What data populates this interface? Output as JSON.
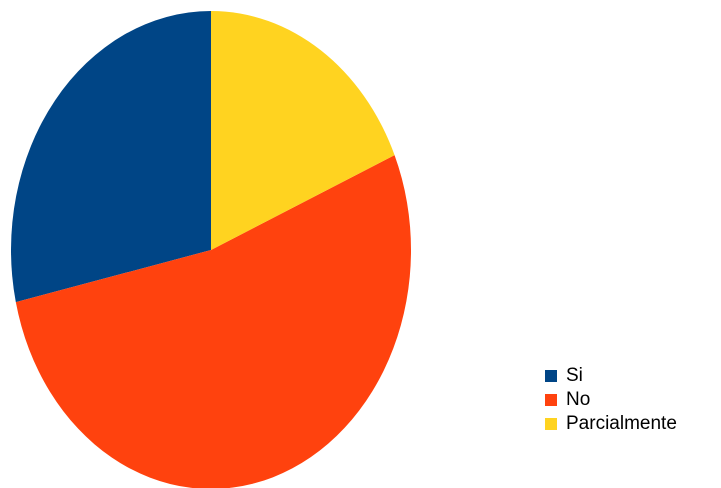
{
  "chart_data": {
    "type": "pie",
    "title": "",
    "slices": [
      {
        "label": "Si",
        "value": 28.5,
        "color": "#004586"
      },
      {
        "label": "No",
        "value": 53.0,
        "color": "#ff420e"
      },
      {
        "label": "Parcialmente",
        "value": 18.5,
        "color": "#ffd320"
      }
    ],
    "start_angle": "top",
    "direction": "counterclockwise",
    "legend_position": "bottom-right"
  }
}
